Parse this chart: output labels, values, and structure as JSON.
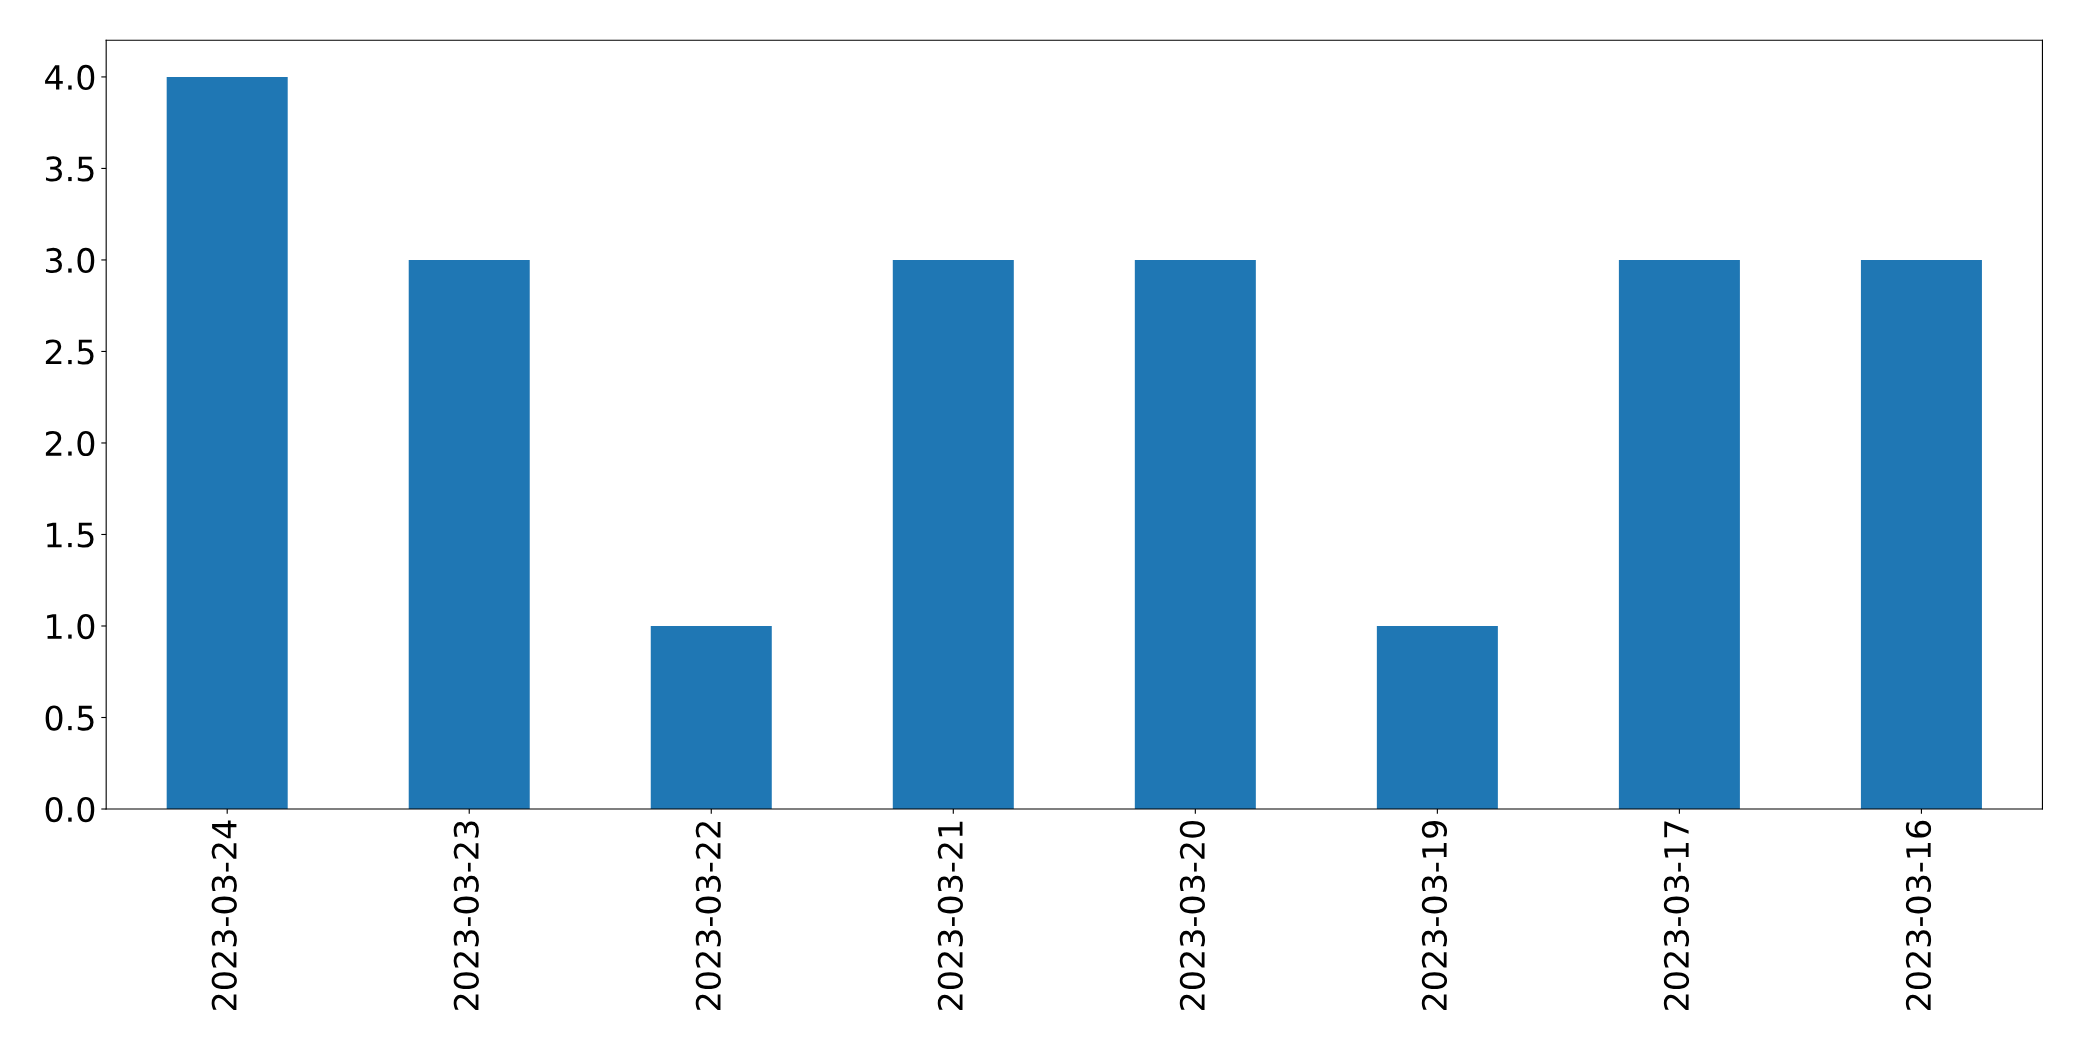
{
  "chart_data": {
    "type": "bar",
    "categories": [
      "2023-03-24",
      "2023-03-23",
      "2023-03-22",
      "2023-03-21",
      "2023-03-20",
      "2023-03-19",
      "2023-03-17",
      "2023-03-16"
    ],
    "values": [
      4,
      3,
      1,
      3,
      3,
      1,
      3,
      3
    ],
    "color": "#1f77b4",
    "ylim": [
      0,
      4.2
    ],
    "yticks": [
      {
        "value": 0,
        "label": "0.0"
      },
      {
        "value": 0.5,
        "label": "0.5"
      },
      {
        "value": 1,
        "label": "1.0"
      },
      {
        "value": 1.5,
        "label": "1.5"
      },
      {
        "value": 2,
        "label": "2.0"
      },
      {
        "value": 2.5,
        "label": "2.5"
      },
      {
        "value": 3,
        "label": "3.0"
      },
      {
        "value": 3.5,
        "label": "3.5"
      },
      {
        "value": 4,
        "label": "4.0"
      }
    ],
    "grid": false,
    "legend": false
  }
}
